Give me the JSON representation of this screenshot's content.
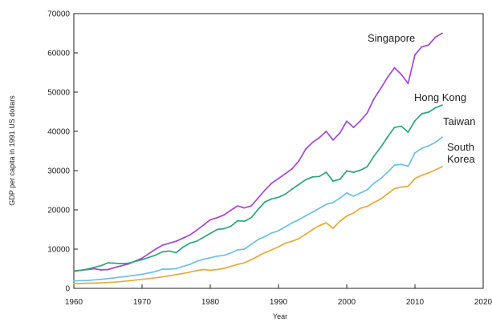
{
  "chart_data": {
    "type": "line",
    "title": "",
    "xlabel": "Year",
    "ylabel": "GDP per capita in 1991 US dollars",
    "xlim": [
      1960,
      2020
    ],
    "ylim": [
      0,
      70000
    ],
    "x_ticks": [
      1960,
      1970,
      1980,
      1990,
      2000,
      2010,
      2020
    ],
    "y_ticks": [
      0,
      10000,
      20000,
      30000,
      40000,
      50000,
      60000,
      70000
    ],
    "grid": false,
    "legend": "inline labels",
    "series": [
      {
        "name": "Singapore",
        "label_lines": [
          "Singapore"
        ],
        "color": "#a546d6",
        "points": [
          [
            1960,
            4400
          ],
          [
            1962,
            4800
          ],
          [
            1963,
            5000
          ],
          [
            1964,
            4700
          ],
          [
            1965,
            4800
          ],
          [
            1966,
            5300
          ],
          [
            1968,
            6200
          ],
          [
            1970,
            7700
          ],
          [
            1972,
            10000
          ],
          [
            1973,
            11000
          ],
          [
            1974,
            11500
          ],
          [
            1975,
            12000
          ],
          [
            1976,
            12800
          ],
          [
            1977,
            13600
          ],
          [
            1978,
            14800
          ],
          [
            1979,
            16100
          ],
          [
            1980,
            17500
          ],
          [
            1981,
            18000
          ],
          [
            1982,
            18700
          ],
          [
            1983,
            19900
          ],
          [
            1984,
            21000
          ],
          [
            1985,
            20500
          ],
          [
            1986,
            21000
          ],
          [
            1987,
            23000
          ],
          [
            1988,
            25000
          ],
          [
            1989,
            26800
          ],
          [
            1990,
            28000
          ],
          [
            1991,
            29200
          ],
          [
            1992,
            30500
          ],
          [
            1993,
            32500
          ],
          [
            1994,
            35500
          ],
          [
            1995,
            37200
          ],
          [
            1996,
            38400
          ],
          [
            1997,
            40000
          ],
          [
            1998,
            37800
          ],
          [
            1999,
            39600
          ],
          [
            2000,
            42600
          ],
          [
            2001,
            41000
          ],
          [
            2002,
            42700
          ],
          [
            2003,
            44700
          ],
          [
            2004,
            48300
          ],
          [
            2005,
            51000
          ],
          [
            2006,
            53800
          ],
          [
            2007,
            56200
          ],
          [
            2008,
            54500
          ],
          [
            2009,
            52200
          ],
          [
            2010,
            59500
          ],
          [
            2011,
            61500
          ],
          [
            2012,
            62000
          ],
          [
            2013,
            64000
          ],
          [
            2014,
            65000
          ]
        ]
      },
      {
        "name": "Hong Kong",
        "label_lines": [
          "Hong Kong"
        ],
        "color": "#2aa87a",
        "points": [
          [
            1960,
            4300
          ],
          [
            1962,
            4900
          ],
          [
            1964,
            5800
          ],
          [
            1965,
            6500
          ],
          [
            1967,
            6300
          ],
          [
            1968,
            6400
          ],
          [
            1970,
            7300
          ],
          [
            1972,
            8500
          ],
          [
            1973,
            9300
          ],
          [
            1974,
            9500
          ],
          [
            1975,
            9100
          ],
          [
            1976,
            10500
          ],
          [
            1977,
            11500
          ],
          [
            1978,
            12000
          ],
          [
            1979,
            13000
          ],
          [
            1980,
            14000
          ],
          [
            1981,
            15000
          ],
          [
            1982,
            15200
          ],
          [
            1983,
            15800
          ],
          [
            1984,
            17200
          ],
          [
            1985,
            17100
          ],
          [
            1986,
            18000
          ],
          [
            1987,
            20100
          ],
          [
            1988,
            22000
          ],
          [
            1989,
            22800
          ],
          [
            1990,
            23200
          ],
          [
            1991,
            24000
          ],
          [
            1992,
            25300
          ],
          [
            1993,
            26500
          ],
          [
            1994,
            27700
          ],
          [
            1995,
            28400
          ],
          [
            1996,
            28500
          ],
          [
            1997,
            29600
          ],
          [
            1998,
            27300
          ],
          [
            1999,
            27800
          ],
          [
            2000,
            29900
          ],
          [
            2001,
            29600
          ],
          [
            2002,
            30100
          ],
          [
            2003,
            31000
          ],
          [
            2004,
            33700
          ],
          [
            2005,
            36000
          ],
          [
            2006,
            38600
          ],
          [
            2007,
            41000
          ],
          [
            2008,
            41300
          ],
          [
            2009,
            39800
          ],
          [
            2010,
            42700
          ],
          [
            2011,
            44500
          ],
          [
            2012,
            44900
          ],
          [
            2013,
            46000
          ],
          [
            2014,
            46700
          ]
        ]
      },
      {
        "name": "Taiwan",
        "label_lines": [
          "Taiwan"
        ],
        "color": "#6cbfe8",
        "points": [
          [
            1960,
            1900
          ],
          [
            1962,
            2000
          ],
          [
            1964,
            2300
          ],
          [
            1966,
            2700
          ],
          [
            1968,
            3100
          ],
          [
            1970,
            3600
          ],
          [
            1972,
            4300
          ],
          [
            1973,
            4900
          ],
          [
            1974,
            4900
          ],
          [
            1975,
            5000
          ],
          [
            1976,
            5600
          ],
          [
            1977,
            6100
          ],
          [
            1978,
            6900
          ],
          [
            1979,
            7400
          ],
          [
            1980,
            7800
          ],
          [
            1981,
            8200
          ],
          [
            1982,
            8400
          ],
          [
            1983,
            9000
          ],
          [
            1984,
            9800
          ],
          [
            1985,
            10000
          ],
          [
            1986,
            11200
          ],
          [
            1987,
            12400
          ],
          [
            1988,
            13200
          ],
          [
            1989,
            14100
          ],
          [
            1990,
            14700
          ],
          [
            1991,
            15700
          ],
          [
            1992,
            16700
          ],
          [
            1993,
            17500
          ],
          [
            1994,
            18500
          ],
          [
            1995,
            19400
          ],
          [
            1996,
            20400
          ],
          [
            1997,
            21400
          ],
          [
            1998,
            21900
          ],
          [
            1999,
            23000
          ],
          [
            2000,
            24300
          ],
          [
            2001,
            23500
          ],
          [
            2002,
            24300
          ],
          [
            2003,
            25100
          ],
          [
            2004,
            26800
          ],
          [
            2005,
            28000
          ],
          [
            2006,
            29600
          ],
          [
            2007,
            31400
          ],
          [
            2008,
            31600
          ],
          [
            2009,
            31100
          ],
          [
            2010,
            34500
          ],
          [
            2011,
            35700
          ],
          [
            2012,
            36300
          ],
          [
            2013,
            37200
          ],
          [
            2014,
            38500
          ]
        ]
      },
      {
        "name": "South Korea",
        "label_lines": [
          "South",
          "Korea"
        ],
        "color": "#e8a93c",
        "points": [
          [
            1960,
            1200
          ],
          [
            1962,
            1300
          ],
          [
            1964,
            1400
          ],
          [
            1966,
            1600
          ],
          [
            1968,
            1900
          ],
          [
            1970,
            2300
          ],
          [
            1972,
            2700
          ],
          [
            1974,
            3200
          ],
          [
            1976,
            3800
          ],
          [
            1978,
            4500
          ],
          [
            1979,
            4800
          ],
          [
            1980,
            4600
          ],
          [
            1981,
            4800
          ],
          [
            1982,
            5100
          ],
          [
            1983,
            5600
          ],
          [
            1984,
            6100
          ],
          [
            1985,
            6500
          ],
          [
            1986,
            7300
          ],
          [
            1987,
            8200
          ],
          [
            1988,
            9100
          ],
          [
            1989,
            9800
          ],
          [
            1990,
            10600
          ],
          [
            1991,
            11500
          ],
          [
            1992,
            12000
          ],
          [
            1993,
            12700
          ],
          [
            1994,
            13800
          ],
          [
            1995,
            15000
          ],
          [
            1996,
            16000
          ],
          [
            1997,
            16700
          ],
          [
            1998,
            15300
          ],
          [
            1999,
            17100
          ],
          [
            2000,
            18400
          ],
          [
            2001,
            19200
          ],
          [
            2002,
            20400
          ],
          [
            2003,
            20900
          ],
          [
            2004,
            21900
          ],
          [
            2005,
            22800
          ],
          [
            2006,
            24100
          ],
          [
            2007,
            25400
          ],
          [
            2008,
            25800
          ],
          [
            2009,
            26000
          ],
          [
            2010,
            28000
          ],
          [
            2011,
            28800
          ],
          [
            2012,
            29400
          ],
          [
            2013,
            30200
          ],
          [
            2014,
            31000
          ]
        ]
      }
    ]
  }
}
